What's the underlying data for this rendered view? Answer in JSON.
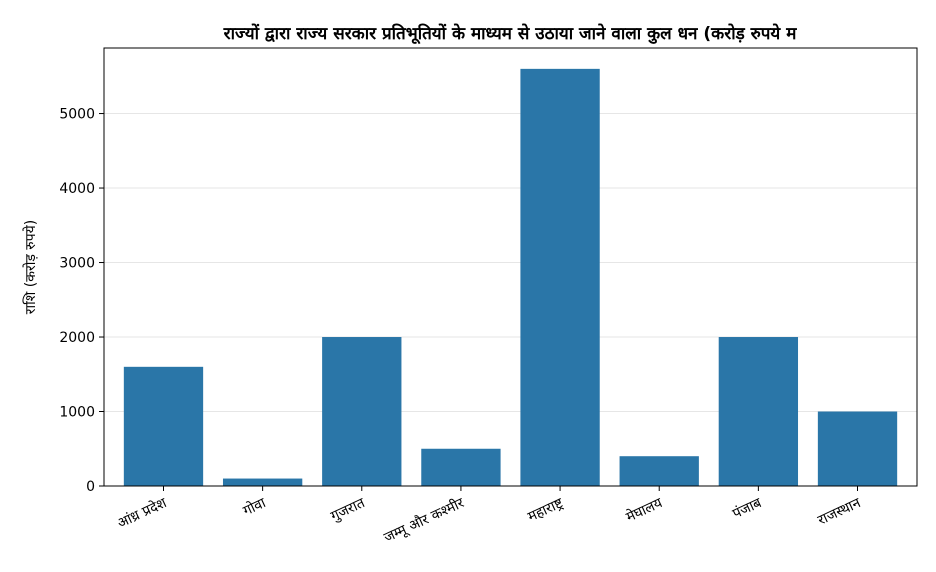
{
  "chart_data": {
    "type": "bar",
    "title": "राज्यों द्वारा राज्य सरकार प्रतिभूतियों के माध्यम से उठाया जाने वाला कुल धन (करोड़ रुपये म",
    "xlabel": "",
    "ylabel": "राशि (करोड़ रुपये)",
    "categories": [
      "आंध्र प्रदेश",
      "गोवा",
      "गुजरात",
      "जम्मू और कश्मीर",
      "महाराष्ट्र",
      "मेघालय",
      "पंजाब",
      "राजस्थान"
    ],
    "values": [
      1600,
      100,
      2000,
      500,
      5600,
      400,
      2000,
      1000
    ],
    "ylim": [
      0,
      5880
    ],
    "yticks": [
      0,
      1000,
      2000,
      3000,
      4000,
      5000
    ],
    "grid": "y",
    "legend": "none",
    "bar_color": "#2a76a8"
  }
}
